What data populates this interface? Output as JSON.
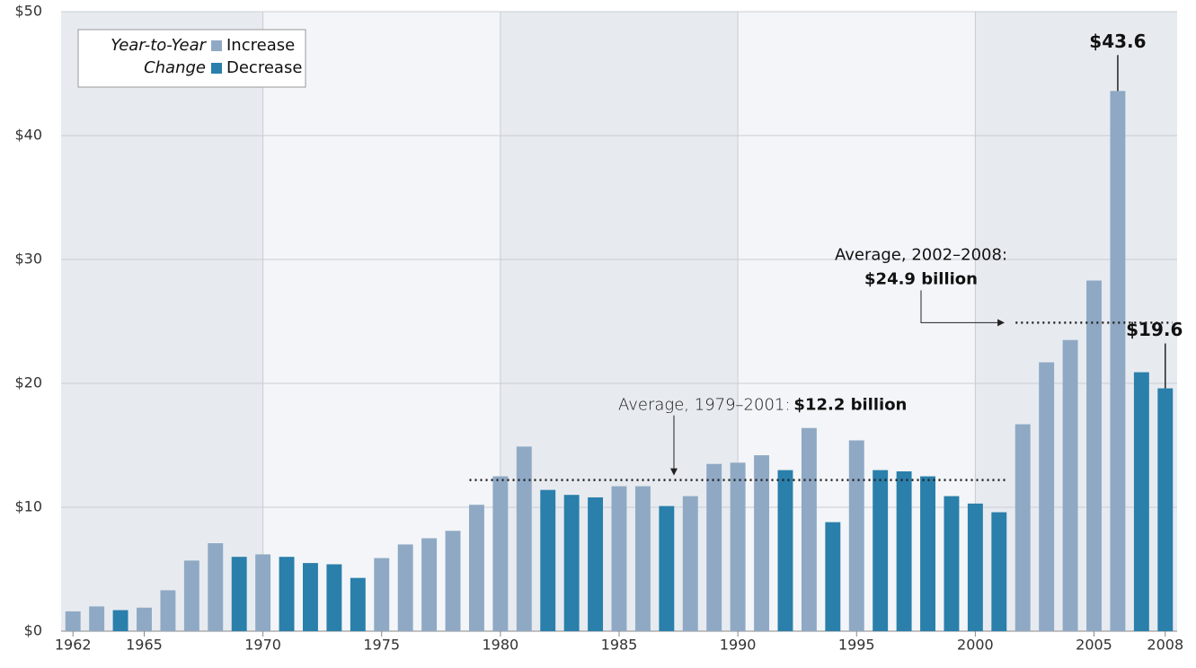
{
  "chart_data": {
    "type": "bar",
    "x": [
      1962,
      1963,
      1964,
      1965,
      1966,
      1967,
      1968,
      1969,
      1970,
      1971,
      1972,
      1973,
      1974,
      1975,
      1976,
      1977,
      1978,
      1979,
      1980,
      1981,
      1982,
      1983,
      1984,
      1985,
      1986,
      1987,
      1988,
      1989,
      1990,
      1991,
      1992,
      1993,
      1994,
      1995,
      1996,
      1997,
      1998,
      1999,
      2000,
      2001,
      2002,
      2003,
      2004,
      2005,
      2006,
      2007,
      2008
    ],
    "series": [
      {
        "name": "Increase",
        "color": "#8fa9c4",
        "values": [
          1.6,
          2.0,
          null,
          1.9,
          3.3,
          5.7,
          7.1,
          null,
          6.2,
          null,
          null,
          null,
          null,
          5.9,
          7.0,
          7.5,
          8.1,
          10.2,
          12.5,
          14.9,
          null,
          null,
          null,
          11.7,
          11.7,
          null,
          10.9,
          13.5,
          13.6,
          14.2,
          null,
          16.4,
          null,
          15.4,
          null,
          null,
          null,
          null,
          null,
          null,
          16.7,
          21.7,
          23.5,
          28.3,
          43.6,
          null,
          null
        ],
        "value_labels": [
          null,
          null,
          null,
          null,
          null,
          null,
          null,
          null,
          null,
          null,
          null,
          null,
          null,
          null,
          null,
          null,
          null,
          null,
          null,
          null,
          null,
          null,
          null,
          null,
          null,
          null,
          null,
          null,
          null,
          null,
          null,
          null,
          null,
          null,
          null,
          null,
          null,
          null,
          null,
          null,
          null,
          null,
          null,
          null,
          "$43.6",
          null,
          null
        ]
      },
      {
        "name": "Decrease",
        "color": "#2a7fab",
        "values": [
          null,
          null,
          1.7,
          null,
          null,
          null,
          null,
          6.0,
          null,
          6.0,
          5.5,
          5.4,
          4.3,
          null,
          null,
          null,
          null,
          null,
          null,
          null,
          11.4,
          11.0,
          10.8,
          null,
          null,
          10.1,
          null,
          null,
          null,
          null,
          13.0,
          null,
          8.8,
          null,
          13.0,
          12.9,
          12.5,
          10.9,
          10.3,
          9.6,
          null,
          null,
          null,
          null,
          null,
          20.9,
          19.6
        ],
        "value_labels": [
          null,
          null,
          null,
          null,
          null,
          null,
          null,
          null,
          null,
          null,
          null,
          null,
          null,
          null,
          null,
          null,
          null,
          null,
          null,
          null,
          null,
          null,
          null,
          null,
          null,
          null,
          null,
          null,
          null,
          null,
          null,
          null,
          null,
          null,
          null,
          null,
          null,
          null,
          null,
          null,
          null,
          null,
          null,
          null,
          null,
          null,
          "$19.6"
        ]
      }
    ],
    "legend_title": [
      "Year-to-Year",
      "Change"
    ],
    "xlim": [
      1961.5,
      2008.5
    ],
    "xticks": [
      1962,
      1965,
      1970,
      1975,
      1980,
      1985,
      1990,
      1995,
      2000,
      2005,
      2008
    ],
    "ylim": [
      0,
      50
    ],
    "yticks": [
      {
        "value": 0,
        "label": "$0"
      },
      {
        "value": 10,
        "label": "$10"
      },
      {
        "value": 20,
        "label": "$20"
      },
      {
        "value": 30,
        "label": "$30"
      },
      {
        "value": 40,
        "label": "$40"
      },
      {
        "value": 50,
        "label": "$50"
      }
    ],
    "grid": true,
    "annotations": [
      {
        "text": "Average, 1979–2001:",
        "value_label": "$12.2 billion",
        "value": 12.2,
        "from": 1979,
        "to": 2001
      },
      {
        "text": "Average, 2002–2008:",
        "value_label": "$24.9 billion",
        "value": 24.9,
        "from": 2002,
        "to": 2008
      }
    ]
  }
}
